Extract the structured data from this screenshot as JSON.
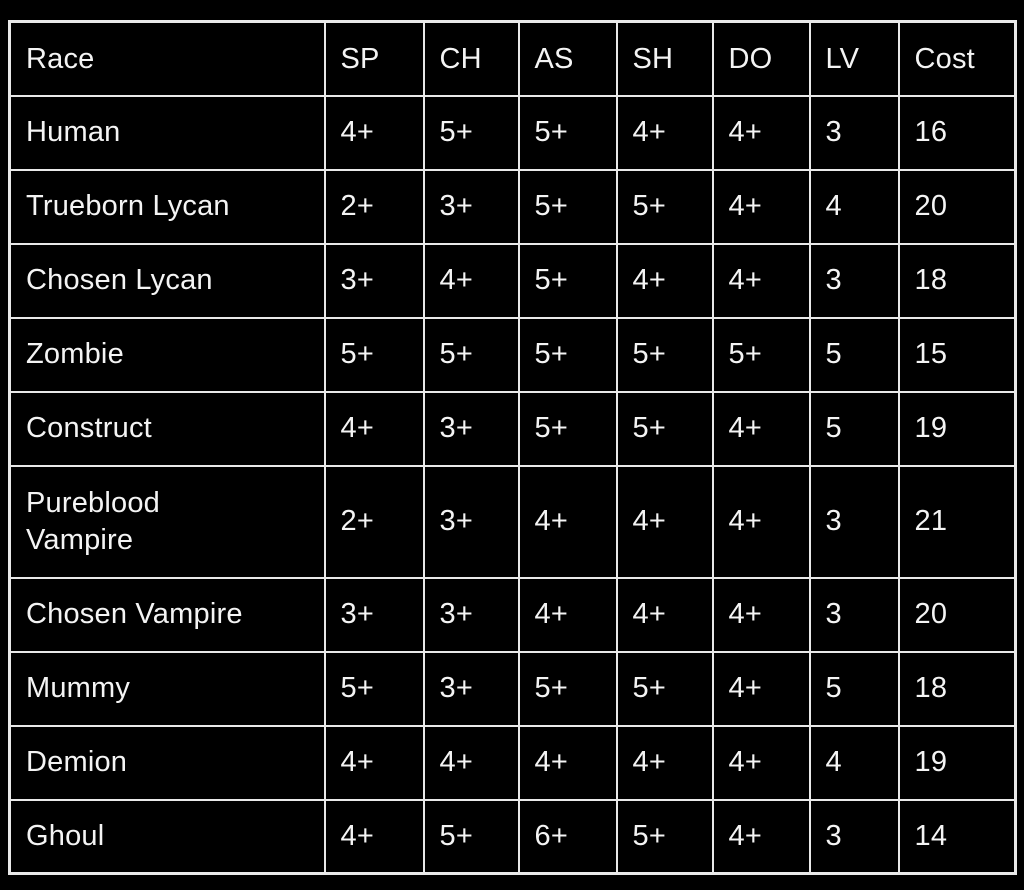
{
  "table": {
    "columns": [
      "Race",
      "SP",
      "CH",
      "AS",
      "SH",
      "DO",
      "LV",
      "Cost"
    ],
    "rows": [
      {
        "race": "Human",
        "sp": "4+",
        "ch": "5+",
        "as": "5+",
        "sh": "4+",
        "do": "4+",
        "lv": "3",
        "cost": "16"
      },
      {
        "race": "Trueborn Lycan",
        "sp": "2+",
        "ch": "3+",
        "as": "5+",
        "sh": "5+",
        "do": "4+",
        "lv": "4",
        "cost": "20"
      },
      {
        "race": "Chosen Lycan",
        "sp": "3+",
        "ch": "4+",
        "as": "5+",
        "sh": "4+",
        "do": "4+",
        "lv": "3",
        "cost": "18"
      },
      {
        "race": "Zombie",
        "sp": "5+",
        "ch": "5+",
        "as": "5+",
        "sh": "5+",
        "do": "5+",
        "lv": "5",
        "cost": "15"
      },
      {
        "race": "Construct",
        "sp": "4+",
        "ch": "3+",
        "as": "5+",
        "sh": "5+",
        "do": "4+",
        "lv": "5",
        "cost": "19"
      },
      {
        "race": "Pureblood\nVampire",
        "sp": "2+",
        "ch": "3+",
        "as": "4+",
        "sh": "4+",
        "do": "4+",
        "lv": "3",
        "cost": "21"
      },
      {
        "race": "Chosen Vampire",
        "sp": "3+",
        "ch": "3+",
        "as": "4+",
        "sh": "4+",
        "do": "4+",
        "lv": "3",
        "cost": "20"
      },
      {
        "race": "Mummy",
        "sp": "5+",
        "ch": "3+",
        "as": "5+",
        "sh": "5+",
        "do": "4+",
        "lv": "5",
        "cost": "18"
      },
      {
        "race": "Demion",
        "sp": "4+",
        "ch": "4+",
        "as": "4+",
        "sh": "4+",
        "do": "4+",
        "lv": "4",
        "cost": "19"
      },
      {
        "race": "Ghoul",
        "sp": "4+",
        "ch": "5+",
        "as": "6+",
        "sh": "5+",
        "do": "4+",
        "lv": "3",
        "cost": "14"
      }
    ]
  },
  "colors": {
    "background": "#000000",
    "grid_line": "#e9e9e9",
    "text": "#f4f4f4"
  }
}
